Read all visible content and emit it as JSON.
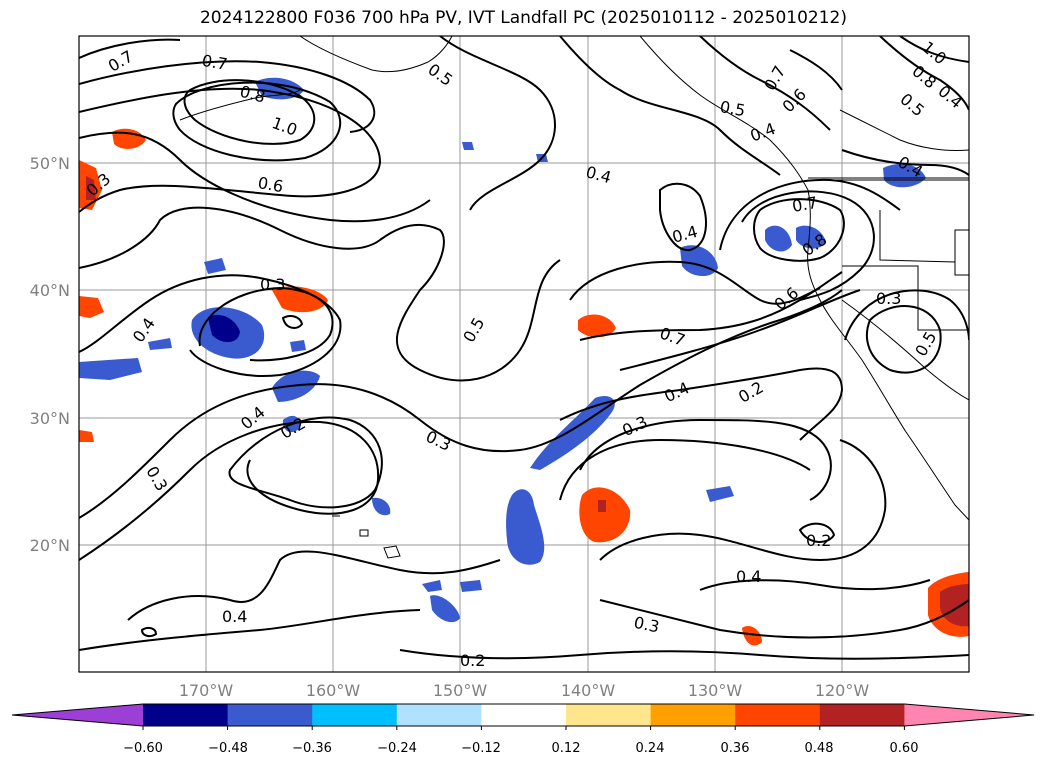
{
  "title": "2024122800 F036 700 hPa PV, IVT Landfall PC (2025010112 - 2025010212)",
  "map": {
    "lon_ticks": [
      "170°W",
      "160°W",
      "150°W",
      "140°W",
      "130°W",
      "120°W"
    ],
    "lat_ticks": [
      "50°N",
      "40°N",
      "30°N",
      "20°N"
    ],
    "extent": {
      "lon": [
        -180,
        -110
      ],
      "lat": [
        10,
        60
      ]
    },
    "grid_color": "#9a9a9a"
  },
  "contour_labels": [
    "0.7",
    "0.7",
    "0.8",
    "1.0",
    "0.6",
    "0.5",
    "0.3",
    "0.4",
    "0.7",
    "0.6",
    "0.5",
    "0.4",
    "0.4",
    "0.4",
    "0.7",
    "0.8",
    "0.6",
    "0.3",
    "0.3",
    "0.4",
    "0.5",
    "0.7",
    "0.2",
    "0.4",
    "0.3",
    "0.4",
    "0.2",
    "0.3",
    "0.3",
    "0.2",
    "0.4",
    "0.4",
    "0.3",
    "0.2",
    "1.0",
    "0.8",
    "0.5",
    "0.4",
    "0.5"
  ],
  "colorbar": {
    "tick_labels": [
      "−0.60",
      "−0.48",
      "−0.36",
      "−0.24",
      "−0.12",
      "0.12",
      "0.24",
      "0.36",
      "0.48",
      "0.60"
    ],
    "colors": [
      "#9b3fd6",
      "#00008b",
      "#3a5bd0",
      "#00bfff",
      "#b0e2ff",
      "#ffffff",
      "#ffe68c",
      "#ffa000",
      "#ff4500",
      "#b22222",
      "#ff85b0"
    ]
  }
}
